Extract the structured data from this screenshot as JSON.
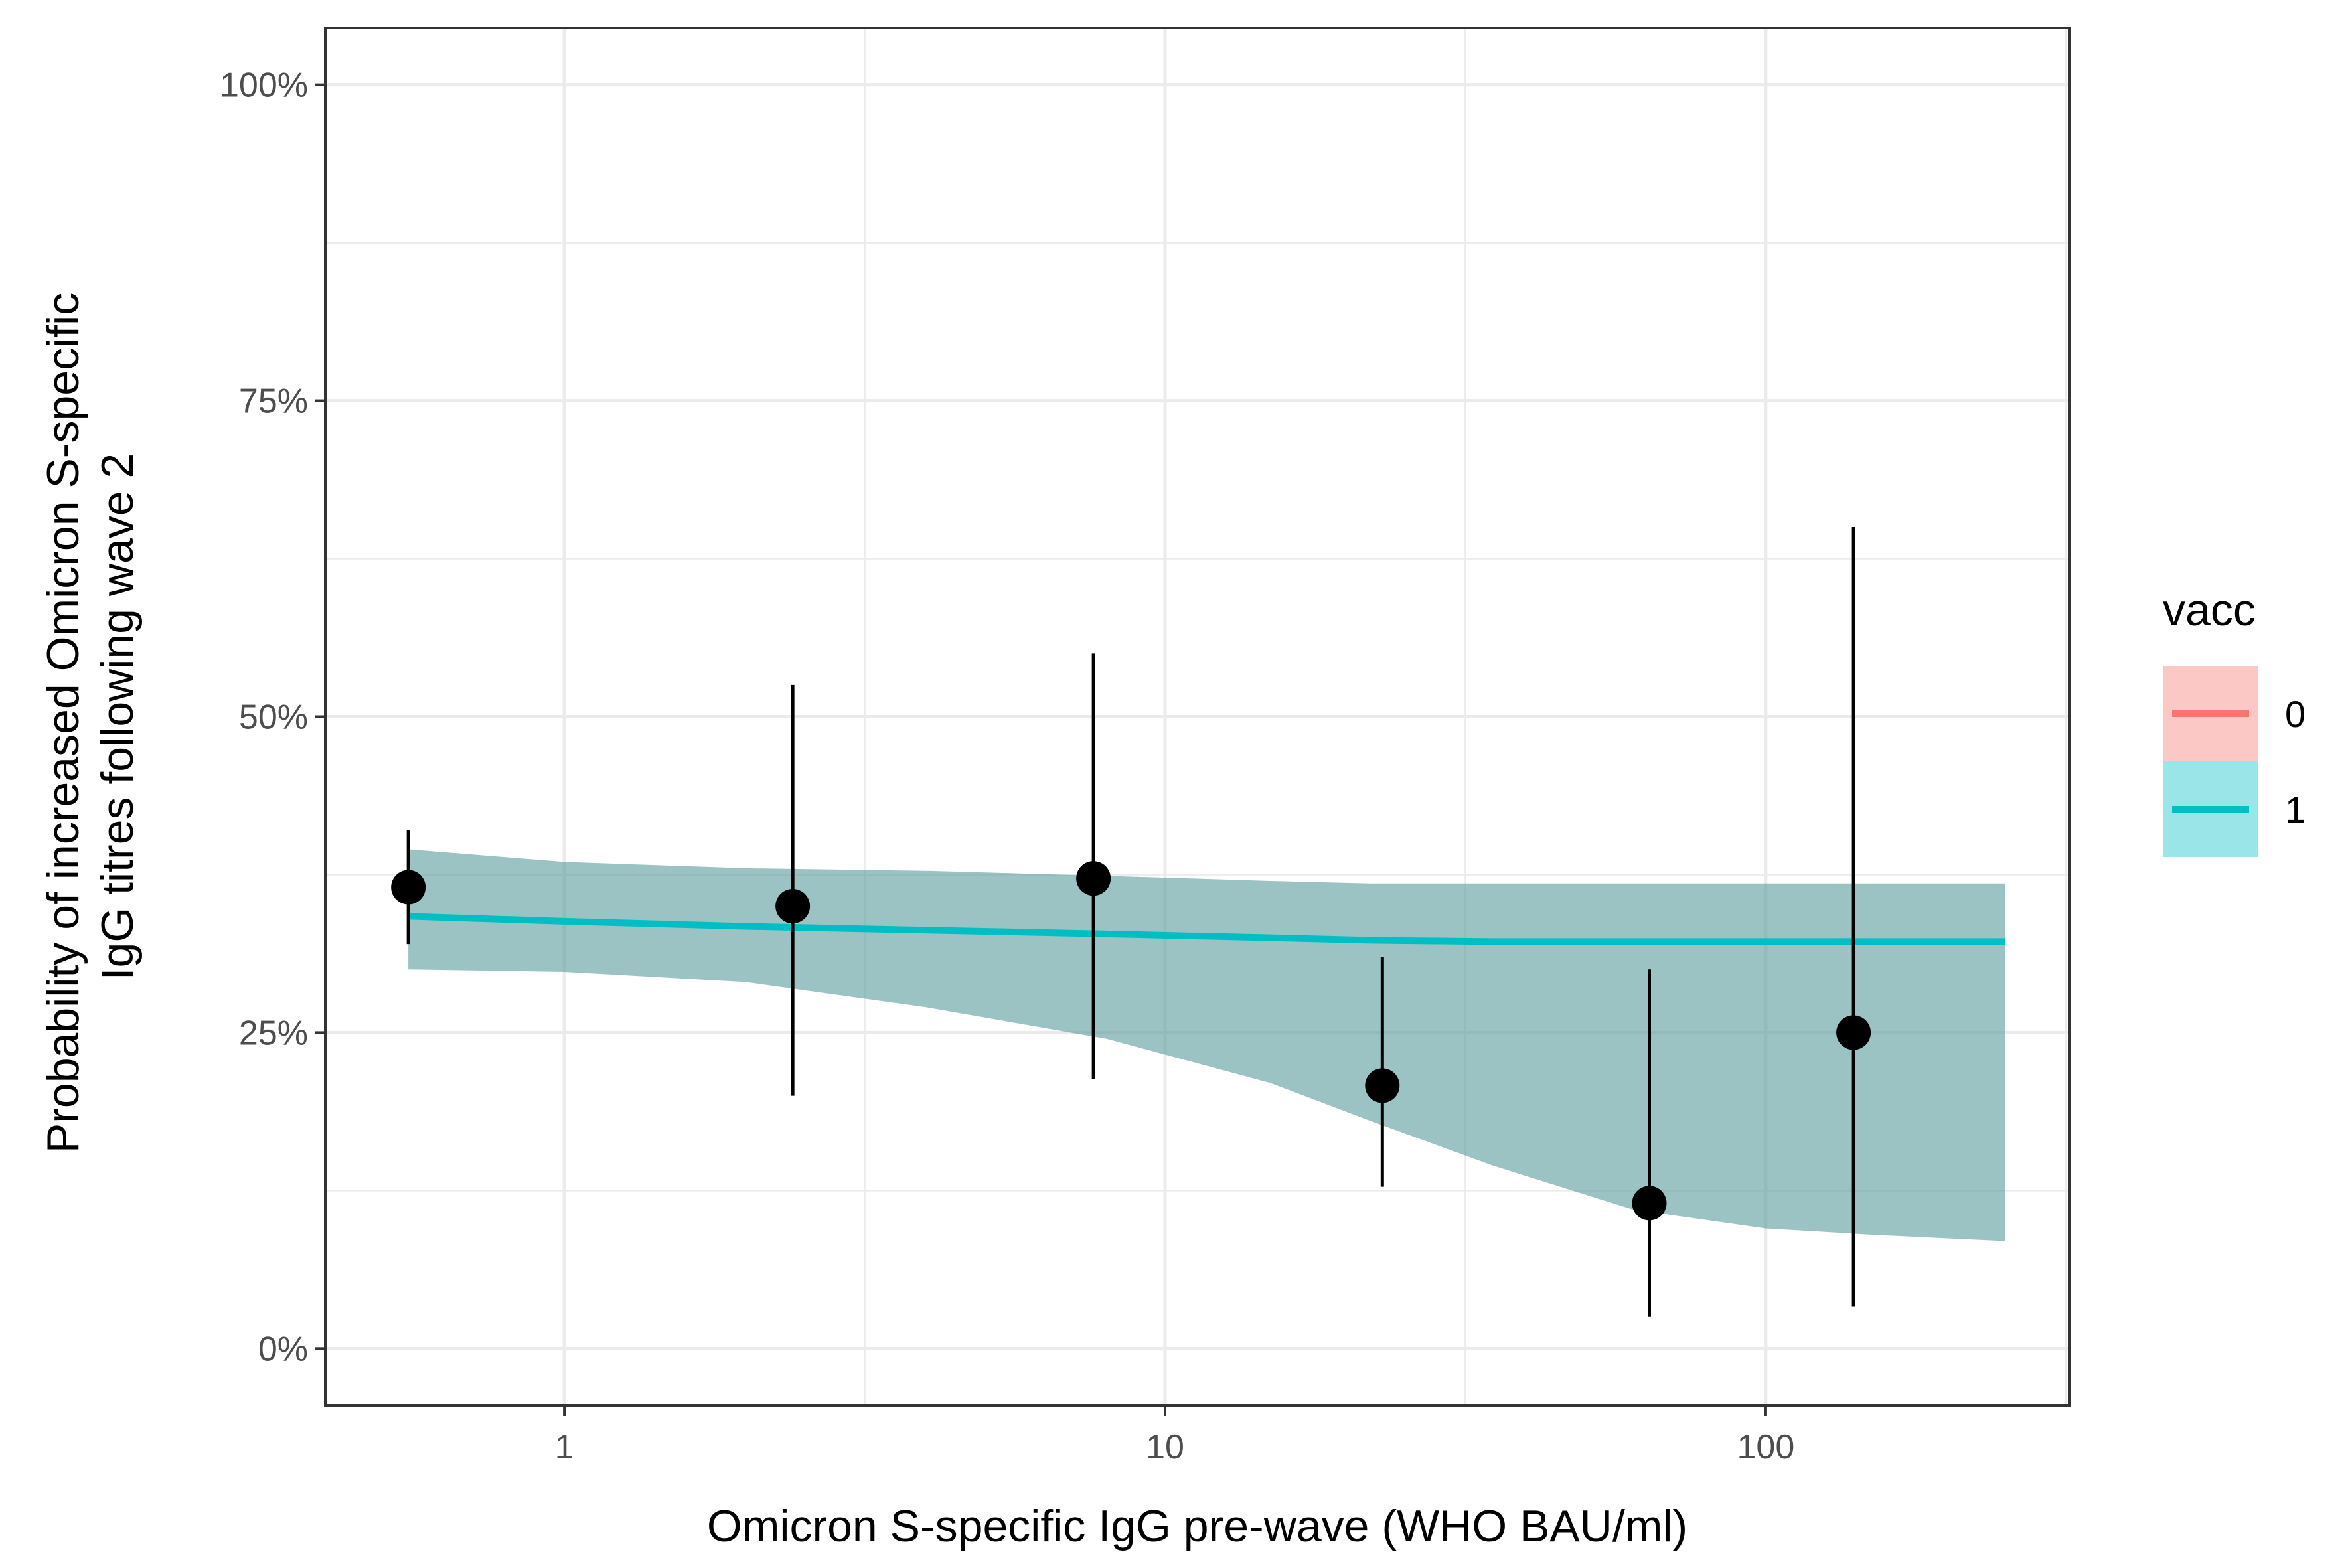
{
  "chart_data": {
    "type": "line",
    "xlabel": "Omicron S-specific IgG pre-wave (WHO BAU/ml)",
    "ylabel_lines": [
      "Probability of increased Omicron S-specific",
      "IgG titres following wave 2"
    ],
    "x_scale": "log10",
    "xlim": [
      0.4,
      320
    ],
    "ylim": [
      -0.045,
      1.045
    ],
    "x_ticks": [
      {
        "value": 1,
        "label": "1"
      },
      {
        "value": 10,
        "label": "10"
      },
      {
        "value": 100,
        "label": "100"
      }
    ],
    "y_ticks": [
      {
        "value": 0,
        "label": "0%"
      },
      {
        "value": 0.25,
        "label": "25%"
      },
      {
        "value": 0.5,
        "label": "50%"
      },
      {
        "value": 0.75,
        "label": "75%"
      },
      {
        "value": 1,
        "label": "100%"
      }
    ],
    "grid": true,
    "legend": {
      "title": "vacc",
      "position": "right",
      "items": [
        {
          "label": "0",
          "line_color": "#F8766D",
          "fill_color": "#F8766D"
        },
        {
          "label": "1",
          "line_color": "#00BFC4",
          "fill_color": "#00BFC4"
        }
      ]
    },
    "series": [
      {
        "name": "1",
        "color": "#00BFC4",
        "ribbon_fill": "#5F9EA0",
        "x": [
          0.55,
          1,
          2,
          4,
          8,
          15,
          22,
          35,
          60,
          100,
          150,
          250
        ],
        "y": [
          0.342,
          0.338,
          0.334,
          0.331,
          0.328,
          0.325,
          0.323,
          0.322,
          0.322,
          0.322,
          0.322,
          0.322
        ],
        "ymin": [
          0.3,
          0.298,
          0.29,
          0.27,
          0.245,
          0.21,
          0.18,
          0.145,
          0.11,
          0.095,
          0.09,
          0.085
        ],
        "ymax": [
          0.395,
          0.385,
          0.38,
          0.378,
          0.374,
          0.37,
          0.368,
          0.368,
          0.368,
          0.368,
          0.368,
          0.368
        ]
      }
    ],
    "points": [
      {
        "x": 0.55,
        "y": 0.365,
        "lower": 0.32,
        "upper": 0.41
      },
      {
        "x": 2.4,
        "y": 0.35,
        "lower": 0.2,
        "upper": 0.525
      },
      {
        "x": 7.6,
        "y": 0.372,
        "lower": 0.213,
        "upper": 0.55
      },
      {
        "x": 23,
        "y": 0.208,
        "lower": 0.128,
        "upper": 0.31
      },
      {
        "x": 64,
        "y": 0.115,
        "lower": 0.025,
        "upper": 0.3
      },
      {
        "x": 140,
        "y": 0.25,
        "lower": 0.033,
        "upper": 0.65
      }
    ]
  }
}
